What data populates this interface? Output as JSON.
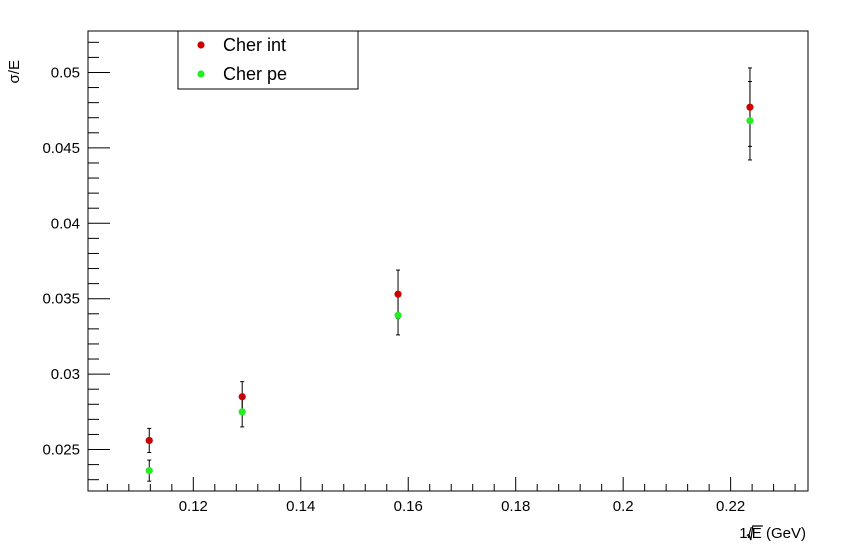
{
  "chart_data": {
    "type": "scatter",
    "title": "",
    "xlabel": "1/√E (GeV)",
    "xlabel_prefix": "1/",
    "xlabel_radicand": "E",
    "xlabel_suffix": " (GeV)",
    "ylabel": "σ/E",
    "xlim": [
      0.1004,
      0.2344
    ],
    "ylim": [
      0.02225,
      0.05275
    ],
    "x_ticks": [
      "0.12",
      "0.14",
      "0.16",
      "0.18",
      "0.2",
      "0.22"
    ],
    "y_ticks": [
      "0.025",
      "0.03",
      "0.035",
      "0.04",
      "0.045",
      "0.05"
    ],
    "grid": false,
    "legend_position": "top-left",
    "series": [
      {
        "name": "Cher int",
        "color": "#cc0000",
        "x": [
          0.1118,
          0.1291,
          0.1581,
          0.2236
        ],
        "y": [
          0.0256,
          0.0285,
          0.0353,
          0.0477
        ],
        "err": [
          0.0008,
          0.001,
          0.0016,
          0.0026
        ]
      },
      {
        "name": "Cher pe",
        "color": "#22ee22",
        "x": [
          0.1118,
          0.1291,
          0.1581,
          0.2236
        ],
        "y": [
          0.0236,
          0.0275,
          0.0339,
          0.0468
        ],
        "err": [
          0.0007,
          0.001,
          0.0013,
          0.0026
        ]
      }
    ]
  }
}
